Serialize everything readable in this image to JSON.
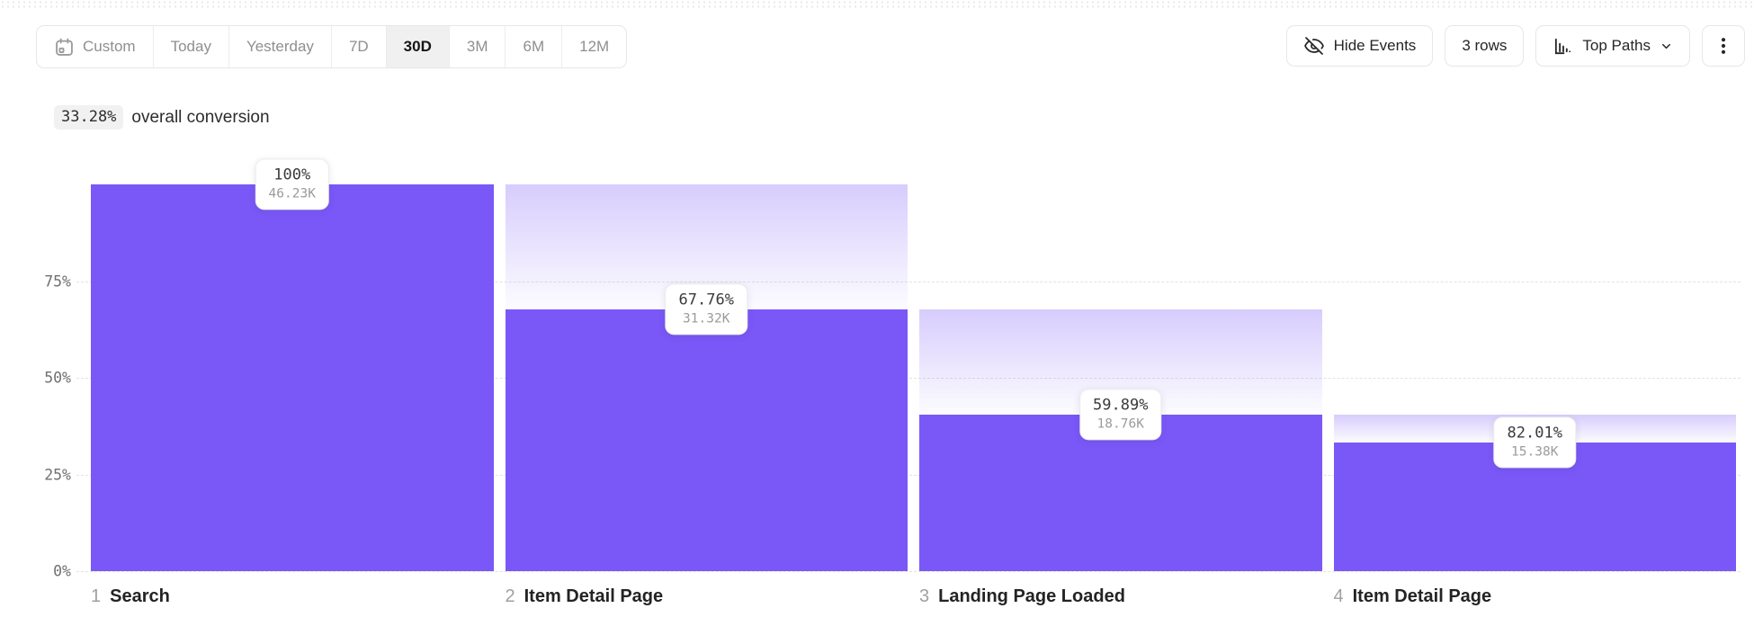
{
  "toolbar": {
    "date_ranges": [
      {
        "label": "Custom",
        "selected": false
      },
      {
        "label": "Today",
        "selected": false
      },
      {
        "label": "Yesterday",
        "selected": false
      },
      {
        "label": "7D",
        "selected": false
      },
      {
        "label": "30D",
        "selected": true
      },
      {
        "label": "3M",
        "selected": false
      },
      {
        "label": "6M",
        "selected": false
      },
      {
        "label": "12M",
        "selected": false
      }
    ],
    "hide_events_label": "Hide Events",
    "rows_label": "3 rows",
    "top_paths_label": "Top Paths"
  },
  "summary": {
    "conversion_value": "33.28%",
    "conversion_suffix": "overall conversion"
  },
  "chart_data": {
    "type": "funnel",
    "title": "33.28% overall conversion",
    "y_axis": {
      "ticks": [
        {
          "label": "75%",
          "pct": 75
        },
        {
          "label": "50%",
          "pct": 50
        },
        {
          "label": "25%",
          "pct": 25
        },
        {
          "label": "0%",
          "pct": 0
        }
      ],
      "max_pct": 100,
      "grid": "dashed"
    },
    "steps": [
      {
        "index": "1",
        "name": "Search",
        "step_conversion": "100%",
        "count": "46.23K",
        "overall_pct": 100
      },
      {
        "index": "2",
        "name": "Item Detail Page",
        "step_conversion": "67.76%",
        "count": "31.32K",
        "overall_pct": 67.76
      },
      {
        "index": "3",
        "name": "Landing Page Loaded",
        "step_conversion": "59.89%",
        "count": "18.76K",
        "overall_pct": 40.58
      },
      {
        "index": "4",
        "name": "Item Detail Page",
        "step_conversion": "82.01%",
        "count": "15.38K",
        "overall_pct": 33.27
      }
    ],
    "colors": {
      "bar": "#7a58f8",
      "dropoff_top": "rgba(122,88,248,0.30)",
      "dropoff_bottom": "rgba(122,88,248,0.02)"
    },
    "legend": "none"
  }
}
